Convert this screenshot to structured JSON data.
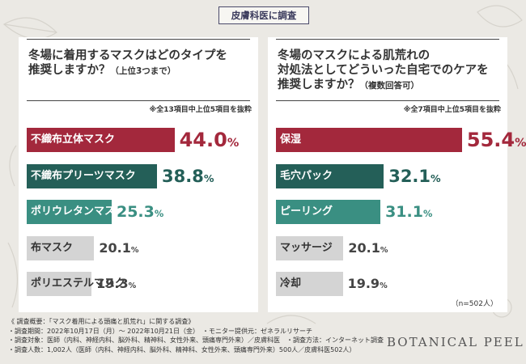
{
  "header": {
    "title": "皮膚科医に調査"
  },
  "colors": {
    "first": "#a3283c",
    "second": "#245f58",
    "third": "#3a8f82",
    "rest": "#d4d4d4",
    "first_text": "#a3283c",
    "second_text": "#245f58",
    "third_text": "#3a8f82",
    "rest_text": "#444444"
  },
  "chart_data": [
    {
      "type": "bar",
      "title": "冬場に着用するマスクはどのタイプを推奨しますか？",
      "subtitle": "（上位3つまで）",
      "note": "※全13項目中上位5項目を抜粋",
      "categories": [
        "不織布立体マスク",
        "不織布プリーツマスク",
        "ポリウレタンマスク",
        "布マスク",
        "ポリエステルマスク"
      ],
      "values": [
        44.0,
        38.8,
        25.3,
        20.1,
        19.3
      ],
      "unit": "%",
      "ylim": [
        0,
        100
      ]
    },
    {
      "type": "bar",
      "title": "冬場のマスクによる肌荒れの対処法としてどういった自宅でのケアを推奨しますか？",
      "subtitle": "（複数回答可）",
      "note": "※全7項目中上位5項目を抜粋",
      "categories": [
        "保湿",
        "毛穴パック",
        "ピーリング",
        "マッサージ",
        "冷却"
      ],
      "values": [
        55.4,
        32.1,
        31.1,
        20.1,
        19.9
      ],
      "unit": "%",
      "ylim": [
        0,
        100
      ]
    }
  ],
  "panels": [
    {
      "question_line1": "冬場に着用するマスクはどのタイプを",
      "question_line2": "推奨しますか？",
      "question_line3": ""
    },
    {
      "question_line1": "冬場のマスクによる肌荒れの",
      "question_line2": "対処法としてどういった自宅でのケアを",
      "question_line3": "推奨しますか？"
    }
  ],
  "sample_size": "（n=502人）",
  "footer": {
    "line1": "《 調査概要：「マスク着用による頭痛と肌荒れ」に関する調査》",
    "line2": "・調査期間：2022年10月17日（月）～ 2022年10月21日（金）　・モニター提供元：ゼネラルリサーチ",
    "line3": "・調査対象：医師（内科、神経内科、脳外科、精神科、女性外来、頭痛専門外来）／皮膚科医　・調査方法：インターネット調査",
    "line4": "・調査人数：1,002人（医師（内科、神経内科、脳外科、精神科、女性外来、頭痛専門外来）500人／皮膚科医502人）"
  },
  "brand": "BOTANICAL PEEL"
}
